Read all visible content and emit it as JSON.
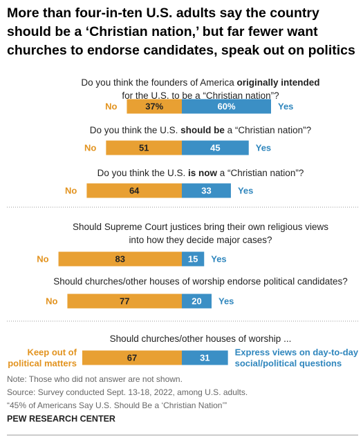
{
  "chart_data": {
    "type": "diverging_bar",
    "title": "More than four-in-ten U.S. adults say the country should be a ‘Christian nation,’ but far fewer want churches to endorse candidates, speak out on politics",
    "colors": [
      "#e8a033",
      "#3b8fc5"
    ],
    "label_colors": [
      "#e2931f",
      "#2f86bd"
    ],
    "sections": [
      {
        "rows": [
          {
            "question": [
              [
                {
                  "text": "Do you think the founders of America ",
                  "bold": false
                },
                {
                  "text": "originally intended",
                  "bold": true
                }
              ],
              [
                {
                  "text": "for the U.S. to be a “Christian nation”?",
                  "bold": false
                }
              ]
            ],
            "labels": [
              [
                "No"
              ],
              [
                "Yes"
              ]
            ],
            "values": [
              37,
              60
            ],
            "value_labels": [
              "37%",
              "60%"
            ]
          },
          {
            "question": [
              [
                {
                  "text": "Do you think the U.S. ",
                  "bold": false
                },
                {
                  "text": "should be",
                  "bold": true
                },
                {
                  "text": " a “Christian nation”?",
                  "bold": false
                }
              ]
            ],
            "labels": [
              [
                "No"
              ],
              [
                "Yes"
              ]
            ],
            "values": [
              51,
              45
            ]
          },
          {
            "question": [
              [
                {
                  "text": "Do you think the U.S. ",
                  "bold": false
                },
                {
                  "text": "is now",
                  "bold": true
                },
                {
                  "text": " a “Christian nation”?",
                  "bold": false
                }
              ]
            ],
            "labels": [
              [
                "No"
              ],
              [
                "Yes"
              ]
            ],
            "values": [
              64,
              33
            ]
          }
        ]
      },
      {
        "rows": [
          {
            "question": [
              [
                {
                  "text": "Should Supreme Court justices bring their own religious views",
                  "bold": false
                }
              ],
              [
                {
                  "text": "into how they decide major cases?",
                  "bold": false
                }
              ]
            ],
            "labels": [
              [
                "No"
              ],
              [
                "Yes"
              ]
            ],
            "values": [
              83,
              15
            ]
          },
          {
            "question": [
              [
                {
                  "text": "Should churches/other houses of worship endorse political candidates?",
                  "bold": false
                }
              ]
            ],
            "labels": [
              [
                "No"
              ],
              [
                "Yes"
              ]
            ],
            "values": [
              77,
              20
            ]
          }
        ]
      },
      {
        "rows": [
          {
            "question": [
              [
                {
                  "text": "Should churches/other houses of worship ...",
                  "bold": false
                }
              ]
            ],
            "labels": [
              [
                "Keep out of",
                "political matters"
              ],
              [
                "Express views on day-to-day",
                "social/political questions"
              ]
            ],
            "values": [
              67,
              31
            ]
          }
        ]
      }
    ],
    "notes": [
      "Note: Those who did not answer are not shown.",
      "Source: Survey conducted Sept. 13-18, 2022, among U.S. adults.",
      "“45% of Americans Say U.S. Should Be a ‘Christian Nation’”"
    ],
    "source": "PEW RESEARCH CENTER"
  }
}
